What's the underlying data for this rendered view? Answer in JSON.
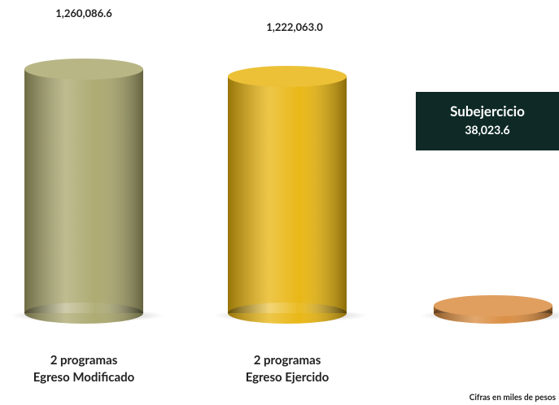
{
  "chart_data": {
    "type": "cylinder",
    "categories": [
      "2 programas\nEgreso Modificado",
      "2 programas\nEgreso Ejercido",
      null
    ],
    "values": [
      1260086.6,
      1222063.0,
      38023.6
    ],
    "value_labels": [
      "1,260,086.6",
      "1,222,063.0",
      "38,023.6"
    ],
    "colors": [
      "#a9a66b",
      "#e8b40c",
      "#d98a3c"
    ],
    "annotation": "Subejercicio",
    "note": "Cifras en miles de pesos"
  }
}
